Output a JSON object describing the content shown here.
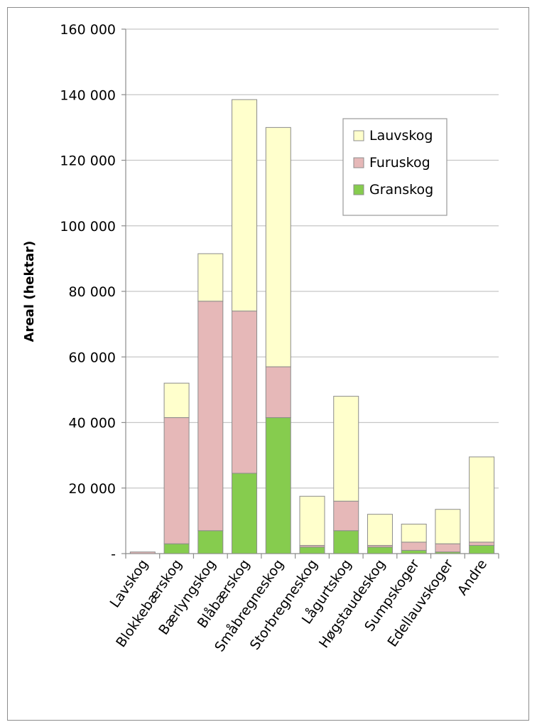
{
  "chart_data": {
    "type": "bar",
    "stacked": true,
    "ylabel": "Areal (hektar)",
    "ylim": [
      0,
      160000
    ],
    "y_ticks": [
      0,
      20000,
      40000,
      60000,
      80000,
      100000,
      120000,
      140000,
      160000
    ],
    "y_tick_labels": [
      "-",
      "20 000",
      "40 000",
      "60 000",
      "80 000",
      "100 000",
      "120 000",
      "140 000",
      "160 000"
    ],
    "grid": true,
    "legend_position": "top-right",
    "categories": [
      "Lavskog",
      "Blokkebærskog",
      "Bærlyngskog",
      "Blåbærskog",
      "Småbregneskog",
      "Storbregneskog",
      "Lågurtskog",
      "Høgstaudeskog",
      "Sumpskoger",
      "Edellauvskoger",
      "Andre"
    ],
    "series": [
      {
        "name": "Granskog",
        "color": "#86cc4e",
        "values": [
          0,
          3000,
          7000,
          24500,
          41500,
          2000,
          7000,
          2000,
          1000,
          500,
          2500
        ]
      },
      {
        "name": "Furuskog",
        "color": "#e6b8b8",
        "values": [
          500,
          38500,
          70000,
          49500,
          15500,
          500,
          9000,
          500,
          2500,
          2500,
          1000
        ]
      },
      {
        "name": "Lauvskog",
        "color": "#ffffcc",
        "values": [
          0,
          10500,
          14500,
          64500,
          73000,
          15000,
          32000,
          9500,
          5500,
          10500,
          26000
        ]
      }
    ],
    "legend_order": [
      "Lauvskog",
      "Furuskog",
      "Granskog"
    ]
  }
}
